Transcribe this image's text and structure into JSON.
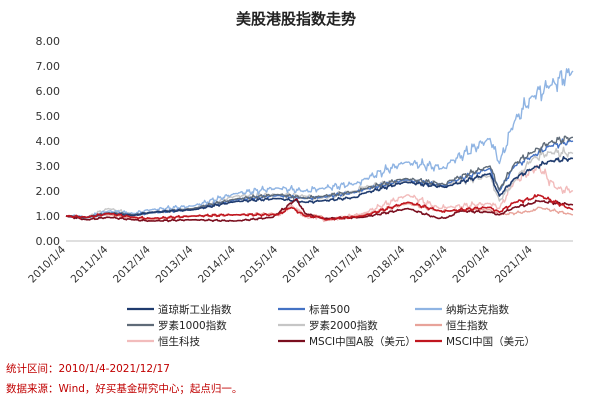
{
  "chart_data": {
    "type": "line",
    "title": "美股港股指数走势",
    "xlabel": "",
    "ylabel": "",
    "ylim": [
      0,
      8
    ],
    "y_ticks": [
      "0.00",
      "1.00",
      "2.00",
      "3.00",
      "4.00",
      "5.00",
      "6.00",
      "7.00",
      "8.00"
    ],
    "x_ticks": [
      "2010/1/4",
      "2011/1/4",
      "2012/1/4",
      "2013/1/4",
      "2014/1/4",
      "2015/1/4",
      "2016/1/4",
      "2017/1/4",
      "2018/1/4",
      "2019/1/4",
      "2020/1/4",
      "2021/1/4"
    ],
    "x_range": [
      "2010-01-04",
      "2021-12-17"
    ],
    "grid": false,
    "legend_position": "bottom",
    "series": [
      {
        "name": "道琼斯工业指数",
        "color": "#1f3b6e",
        "width": 1.6,
        "x": [
          "2010-01-04",
          "2010-07-01",
          "2011-01-04",
          "2011-08-10",
          "2012-01-04",
          "2013-01-04",
          "2014-01-04",
          "2015-01-04",
          "2015-08-25",
          "2016-01-04",
          "2016-11-09",
          "2017-01-04",
          "2018-01-04",
          "2018-12-24",
          "2019-01-04",
          "2020-01-02",
          "2020-03-23",
          "2020-08-01",
          "2021-01-04",
          "2021-06-01",
          "2021-12-17"
        ],
        "y": [
          1.0,
          0.95,
          1.1,
          1.02,
          1.15,
          1.25,
          1.58,
          1.7,
          1.55,
          1.6,
          1.75,
          1.9,
          2.36,
          2.15,
          2.2,
          2.7,
          1.8,
          2.5,
          2.9,
          3.2,
          3.3
        ]
      },
      {
        "name": "标普500",
        "color": "#4472c4",
        "width": 1.4,
        "x": [
          "2010-01-04",
          "2010-07-01",
          "2011-01-04",
          "2011-08-10",
          "2012-01-04",
          "2013-01-04",
          "2014-01-04",
          "2015-01-04",
          "2015-08-25",
          "2016-01-04",
          "2016-11-09",
          "2017-01-04",
          "2018-01-04",
          "2018-12-24",
          "2019-01-04",
          "2020-01-02",
          "2020-03-23",
          "2020-08-01",
          "2021-01-04",
          "2021-06-01",
          "2021-12-17"
        ],
        "y": [
          1.0,
          0.93,
          1.12,
          1.05,
          1.12,
          1.28,
          1.65,
          1.82,
          1.7,
          1.75,
          1.95,
          2.05,
          2.45,
          2.2,
          2.32,
          2.9,
          2.0,
          3.0,
          3.4,
          3.8,
          4.0
        ]
      },
      {
        "name": "纳斯达克指数",
        "color": "#8fb4e3",
        "width": 1.4,
        "x": [
          "2010-01-04",
          "2010-07-01",
          "2011-01-04",
          "2011-08-10",
          "2012-01-04",
          "2013-01-04",
          "2014-01-04",
          "2015-01-04",
          "2015-08-25",
          "2016-01-04",
          "2016-11-09",
          "2017-01-04",
          "2018-01-04",
          "2018-12-24",
          "2019-01-04",
          "2020-01-02",
          "2020-03-23",
          "2020-08-01",
          "2021-01-04",
          "2021-06-01",
          "2021-12-17"
        ],
        "y": [
          1.0,
          0.95,
          1.2,
          1.1,
          1.25,
          1.4,
          1.9,
          2.12,
          2.0,
          2.1,
          2.3,
          2.45,
          3.15,
          2.9,
          3.1,
          4.1,
          3.1,
          4.8,
          5.8,
          6.2,
          6.8
        ]
      },
      {
        "name": "罗素1000指数",
        "color": "#5f6b78",
        "width": 1.4,
        "x": [
          "2010-01-04",
          "2010-07-01",
          "2011-01-04",
          "2011-08-10",
          "2012-01-04",
          "2013-01-04",
          "2014-01-04",
          "2015-01-04",
          "2015-08-25",
          "2016-01-04",
          "2016-11-09",
          "2017-01-04",
          "2018-01-04",
          "2018-12-24",
          "2019-01-04",
          "2020-01-02",
          "2020-03-23",
          "2020-08-01",
          "2021-01-04",
          "2021-06-01",
          "2021-12-17"
        ],
        "y": [
          1.0,
          0.93,
          1.13,
          1.05,
          1.13,
          1.3,
          1.68,
          1.86,
          1.72,
          1.78,
          1.98,
          2.08,
          2.5,
          2.25,
          2.38,
          3.0,
          2.05,
          3.1,
          3.55,
          3.95,
          4.15
        ]
      },
      {
        "name": "罗素2000指数",
        "color": "#c6c6c6",
        "width": 1.4,
        "x": [
          "2010-01-04",
          "2010-07-01",
          "2011-01-04",
          "2011-08-10",
          "2012-01-04",
          "2013-01-04",
          "2014-01-04",
          "2015-01-04",
          "2015-08-25",
          "2016-01-04",
          "2016-11-09",
          "2017-01-04",
          "2018-01-04",
          "2018-12-24",
          "2019-01-04",
          "2020-01-02",
          "2020-03-23",
          "2020-08-01",
          "2021-01-04",
          "2021-06-01",
          "2021-12-17"
        ],
        "y": [
          1.0,
          0.95,
          1.3,
          1.05,
          1.15,
          1.3,
          1.8,
          1.85,
          1.8,
          1.7,
          2.0,
          2.15,
          2.4,
          2.2,
          2.3,
          2.6,
          1.6,
          2.4,
          3.3,
          3.55,
          3.5
        ]
      },
      {
        "name": "恒生指数",
        "color": "#e8a39a",
        "width": 1.4,
        "x": [
          "2010-01-04",
          "2010-07-01",
          "2011-01-04",
          "2011-08-10",
          "2012-01-04",
          "2013-01-04",
          "2014-01-04",
          "2015-01-04",
          "2015-04-28",
          "2015-08-25",
          "2016-01-04",
          "2016-02-12",
          "2017-01-04",
          "2018-01-26",
          "2018-10-30",
          "2019-01-04",
          "2020-01-02",
          "2020-03-23",
          "2021-01-04",
          "2021-02-18",
          "2021-12-17"
        ],
        "y": [
          1.0,
          0.95,
          1.05,
          0.9,
          0.85,
          1.0,
          1.05,
          1.1,
          1.35,
          1.05,
          1.0,
          0.85,
          1.05,
          1.5,
          1.2,
          1.2,
          1.25,
          1.05,
          1.2,
          1.35,
          1.05
        ]
      },
      {
        "name": "恒生科技",
        "color": "#f2bcbc",
        "width": 1.4,
        "x": [
          "2015-01-04",
          "2015-04-28",
          "2015-08-25",
          "2016-01-04",
          "2016-02-12",
          "2017-01-04",
          "2018-01-26",
          "2018-10-30",
          "2019-01-04",
          "2020-01-02",
          "2020-03-23",
          "2020-08-01",
          "2021-01-04",
          "2021-02-18",
          "2021-07-28",
          "2021-12-17"
        ],
        "y": [
          1.0,
          1.45,
          0.95,
          0.95,
          0.8,
          1.1,
          1.85,
          1.3,
          1.35,
          1.5,
          1.3,
          2.4,
          2.85,
          3.0,
          2.1,
          2.0
        ]
      },
      {
        "name": "MSCI中国A股（美元）",
        "color": "#7a0e1e",
        "width": 1.6,
        "x": [
          "2010-01-04",
          "2010-07-01",
          "2011-01-04",
          "2011-08-10",
          "2012-01-04",
          "2013-01-04",
          "2014-01-04",
          "2014-11-20",
          "2015-06-12",
          "2015-08-25",
          "2016-01-28",
          "2017-01-04",
          "2018-01-26",
          "2018-10-19",
          "2019-01-04",
          "2019-04-19",
          "2020-01-02",
          "2020-03-23",
          "2020-08-01",
          "2021-01-04",
          "2021-02-18",
          "2021-12-17"
        ],
        "y": [
          1.0,
          0.85,
          0.95,
          0.85,
          0.8,
          0.85,
          0.8,
          0.95,
          1.68,
          1.1,
          0.9,
          0.95,
          1.3,
          0.9,
          0.95,
          1.2,
          1.15,
          1.05,
          1.35,
          1.5,
          1.6,
          1.45
        ]
      },
      {
        "name": "MSCI中国（美元）",
        "color": "#c0161f",
        "width": 1.6,
        "x": [
          "2010-01-04",
          "2010-07-01",
          "2011-01-04",
          "2011-08-10",
          "2012-01-04",
          "2013-01-04",
          "2014-01-04",
          "2015-01-04",
          "2015-04-28",
          "2015-08-25",
          "2016-01-04",
          "2016-02-12",
          "2017-01-04",
          "2018-01-26",
          "2018-10-30",
          "2019-01-04",
          "2020-01-02",
          "2020-03-23",
          "2020-08-01",
          "2021-01-04",
          "2021-02-18",
          "2021-12-17"
        ],
        "y": [
          1.0,
          0.95,
          1.1,
          0.95,
          0.9,
          1.0,
          1.05,
          1.05,
          1.35,
          1.0,
          0.95,
          0.85,
          1.0,
          1.55,
          1.2,
          1.2,
          1.35,
          1.15,
          1.55,
          1.7,
          1.85,
          1.25
        ]
      }
    ]
  },
  "footnotes": {
    "range": "统计区间：2010/1/4-2021/12/17",
    "source": "数据来源：Wind，好买基金研究中心；起点归一。"
  }
}
